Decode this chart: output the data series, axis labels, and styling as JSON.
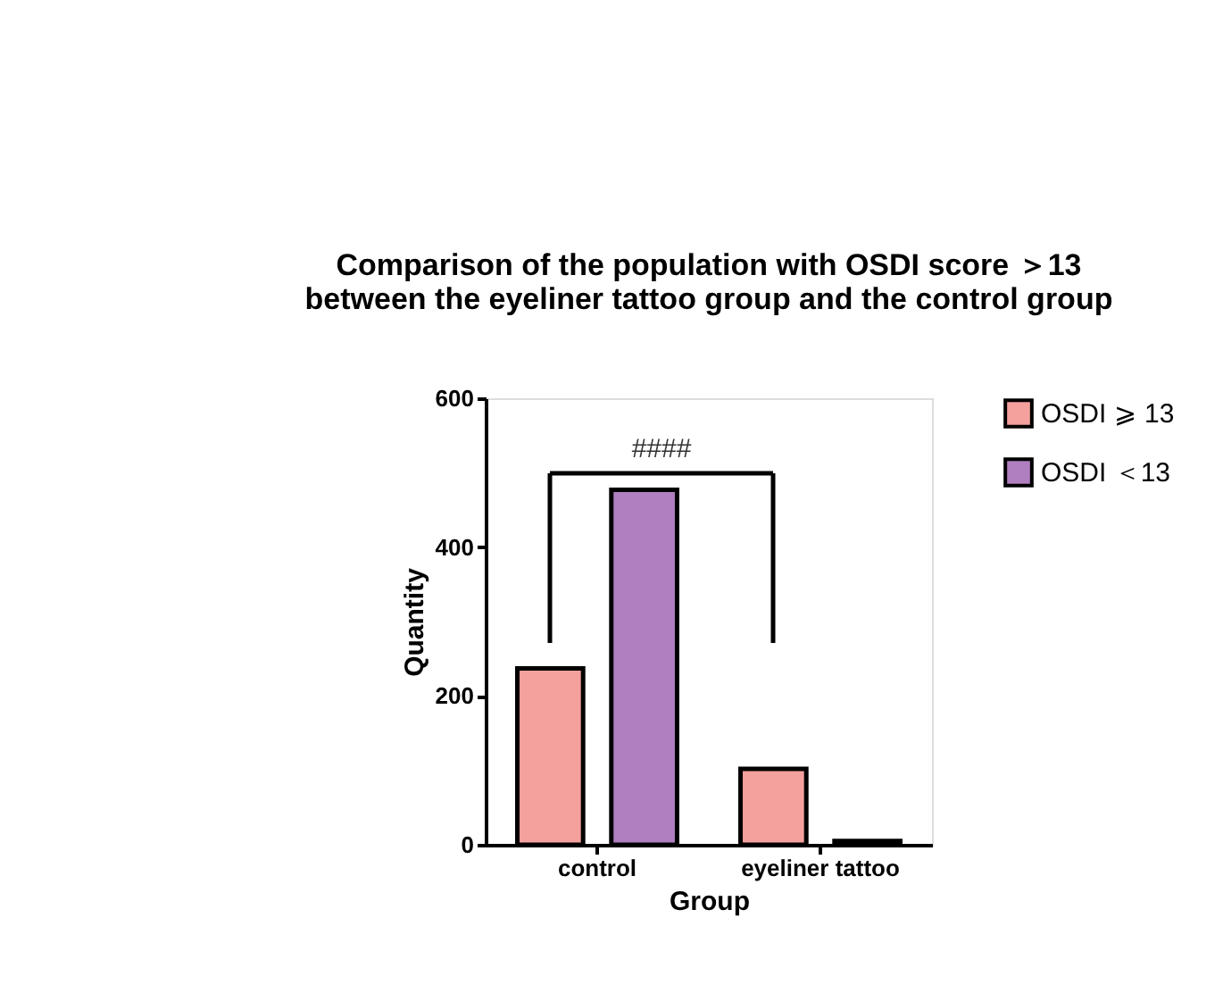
{
  "chart_data": {
    "type": "bar",
    "title": "Comparison of the population with OSDI score ＞13\nbetween the eyeliner tattoo group and the control group",
    "xlabel": "Group",
    "ylabel": "Quantity",
    "categories": [
      "control",
      "eyeliner tattoo"
    ],
    "series": [
      {
        "name": "OSDI ⩾ 13",
        "color": "#f4a19d",
        "values": [
          237,
          102
        ]
      },
      {
        "name": "OSDI ＜13",
        "color": "#b07fc0",
        "values": [
          477,
          5
        ]
      }
    ],
    "ylim": [
      0,
      600
    ],
    "yticks": [
      0,
      200,
      400,
      600
    ],
    "grid": false,
    "legend": "top right",
    "annotations": [
      "####"
    ]
  }
}
